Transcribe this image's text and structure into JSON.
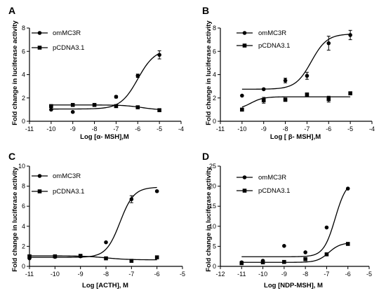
{
  "chart_data": [
    {
      "type": "scatter",
      "panel": "A",
      "xlabel": "Log [α- MSH],M",
      "ylabel": "Fold change in luciferase activity",
      "xlim": [
        -11,
        -4
      ],
      "ylim": [
        0,
        8
      ],
      "xticks": [
        -11,
        -10,
        -9,
        -8,
        -7,
        -6,
        -5,
        -4
      ],
      "yticks": [
        0,
        2,
        4,
        6,
        8
      ],
      "legend": [
        "omMC3R",
        "pCDNA3.1"
      ],
      "series": [
        {
          "name": "omMC3R",
          "marker": "circle",
          "x": [
            -10,
            -9,
            -8,
            -7,
            -6,
            -5
          ],
          "y": [
            1.0,
            0.8,
            1.4,
            2.1,
            3.9,
            5.7
          ],
          "err": [
            0,
            0,
            0,
            0.1,
            0.15,
            0.35
          ],
          "fit": {
            "bottom": 1.05,
            "top": 6.2,
            "logec50": -6.0,
            "hill": 1.1
          }
        },
        {
          "name": "pCDNA3.1",
          "marker": "square",
          "x": [
            -10,
            -9,
            -8,
            -7,
            -6,
            -5
          ],
          "y": [
            1.3,
            1.4,
            1.4,
            1.3,
            1.2,
            0.95
          ],
          "err": [
            0,
            0,
            0,
            0,
            0,
            0
          ],
          "fit": {
            "bottom": 1.4,
            "top": 0.95,
            "logec50": -5.8,
            "hill": 1.0
          }
        }
      ]
    },
    {
      "type": "scatter",
      "panel": "B",
      "xlabel": "Log [ β- MSH],M",
      "ylabel": "Fold change in luciferase activity",
      "xlim": [
        -11,
        -4
      ],
      "ylim": [
        0,
        8
      ],
      "xticks": [
        -11,
        -10,
        -9,
        -8,
        -7,
        -6,
        -5,
        -4
      ],
      "yticks": [
        0,
        2,
        4,
        6,
        8
      ],
      "legend": [
        "omMC3R",
        "pCDNA3.1"
      ],
      "series": [
        {
          "name": "omMC3R",
          "marker": "circle",
          "x": [
            -10,
            -9,
            -8,
            -7,
            -6,
            -5
          ],
          "y": [
            2.2,
            2.75,
            3.5,
            3.9,
            6.7,
            7.4
          ],
          "err": [
            0,
            0,
            0.2,
            0.3,
            0.6,
            0.4
          ],
          "fit": {
            "bottom": 2.75,
            "top": 7.5,
            "logec50": -6.8,
            "hill": 1.2
          }
        },
        {
          "name": "pCDNA3.1",
          "marker": "square",
          "x": [
            -10,
            -9,
            -8,
            -7,
            -6,
            -5
          ],
          "y": [
            1.0,
            1.8,
            1.85,
            2.3,
            1.9,
            2.4
          ],
          "err": [
            0,
            0.25,
            0.15,
            0.1,
            0.25,
            0.1
          ],
          "fit": {
            "bottom": 1.0,
            "top": 2.1,
            "logec50": -9.6,
            "hill": 1.5
          }
        }
      ]
    },
    {
      "type": "scatter",
      "panel": "C",
      "xlabel": "Log [ACTH], M",
      "ylabel": "Fold change in luciferase activity",
      "xlim": [
        -11,
        -5
      ],
      "ylim": [
        0,
        10
      ],
      "xticks": [
        -11,
        -10,
        -9,
        -8,
        -7,
        -6,
        -5
      ],
      "yticks": [
        0,
        2,
        4,
        6,
        8,
        10
      ],
      "legend": [
        "omMC3R",
        "pCDNA3.1"
      ],
      "series": [
        {
          "name": "omMC3R",
          "marker": "circle",
          "x": [
            -11,
            -10,
            -9,
            -8,
            -7,
            -6
          ],
          "y": [
            0.8,
            0.95,
            1.0,
            2.4,
            6.7,
            7.5
          ],
          "err": [
            0,
            0,
            0,
            0,
            0.35,
            0
          ],
          "fit": {
            "bottom": 0.9,
            "top": 7.9,
            "logec50": -7.45,
            "hill": 1.6
          }
        },
        {
          "name": "pCDNA3.1",
          "marker": "square",
          "x": [
            -11,
            -10,
            -9,
            -8,
            -7,
            -6
          ],
          "y": [
            1.0,
            1.0,
            1.05,
            0.8,
            0.55,
            0.9
          ],
          "err": [
            0,
            0,
            0,
            0,
            0,
            0
          ],
          "fit": {
            "bottom": 1.05,
            "top": 0.65,
            "logec50": -8.0,
            "hill": 1.0
          }
        }
      ]
    },
    {
      "type": "scatter",
      "panel": "D",
      "xlabel": "Log [NDP-MSH], M",
      "ylabel": "Fold change in luciferase activity",
      "xlim": [
        -12,
        -5
      ],
      "ylim": [
        0,
        25
      ],
      "xticks": [
        -12,
        -11,
        -10,
        -9,
        -8,
        -7,
        -6,
        -5
      ],
      "yticks": [
        0,
        5,
        10,
        15,
        20,
        25
      ],
      "legend": [
        "omMC3R",
        "pCDNA3.1"
      ],
      "series": [
        {
          "name": "omMC3R",
          "marker": "circle",
          "x": [
            -11,
            -10,
            -9,
            -8,
            -7,
            -6
          ],
          "y": [
            1.0,
            1.4,
            5.1,
            3.5,
            9.7,
            19.4
          ],
          "err": [
            0,
            0,
            0,
            0,
            0,
            0
          ],
          "fit": {
            "bottom": 2.4,
            "top": 21.5,
            "logec50": -6.6,
            "hill": 1.6
          }
        },
        {
          "name": "pCDNA3.1",
          "marker": "square",
          "x": [
            -11,
            -10,
            -9,
            -8,
            -7,
            -6
          ],
          "y": [
            0.8,
            1.0,
            1.1,
            1.8,
            3.0,
            5.6
          ],
          "err": [
            0,
            0,
            0,
            0,
            0,
            0
          ],
          "fit": {
            "bottom": 1.0,
            "top": 5.9,
            "logec50": -6.9,
            "hill": 1.6
          }
        }
      ]
    }
  ]
}
